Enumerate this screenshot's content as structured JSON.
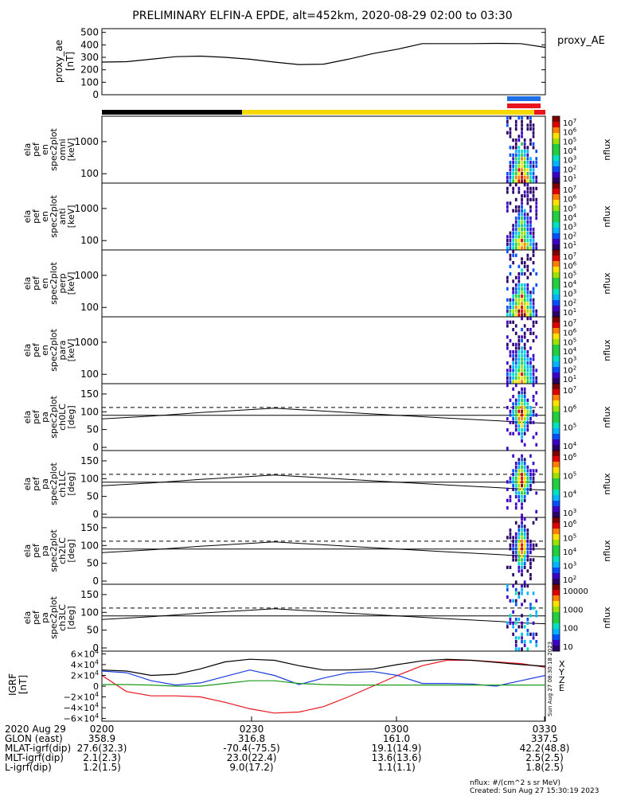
{
  "title": "PRELIMINARY ELFIN-A EPDE, alt=452km, 2020-08-29 02:00 to 03:30",
  "colors": {
    "black_bar": "#000000",
    "yellow_bar": "#f5d800",
    "blue_bar": "#1e6fe6",
    "red_bar": "#e8141e",
    "bx": "#e8141e",
    "by": "#1a3cdc",
    "bz": "#000000",
    "bg": "#1a9a1a"
  },
  "chart_data": [
    {
      "type": "line",
      "id": "proxy_ae",
      "ylabel_lines": [
        "proxy_ae",
        "[nT]"
      ],
      "yticks": [
        "500",
        "400",
        "300",
        "200",
        "100",
        "0"
      ],
      "ylim": [
        0,
        530
      ],
      "legend": "proxy_AE",
      "xlim_min": [
        0,
        90
      ],
      "x": [
        0,
        5,
        10,
        15,
        20,
        25,
        30,
        35,
        40,
        45,
        50,
        55,
        60,
        65,
        70,
        75,
        80,
        85,
        90
      ],
      "y": [
        262,
        265,
        285,
        305,
        310,
        300,
        285,
        262,
        242,
        245,
        285,
        330,
        365,
        410,
        410,
        410,
        412,
        410,
        380
      ]
    },
    {
      "type": "heatmap",
      "id": "omni",
      "ylabel_lines": [
        "ela",
        "pef",
        "en",
        "spec2plot",
        "omni",
        "[keV]"
      ],
      "yticks": [
        "1000",
        "100"
      ],
      "cbar_ticks": [
        "10^7",
        "10^6",
        "10^5",
        "10^4",
        "10^3",
        "10^2",
        "10^1"
      ],
      "cbar_label": "nflux"
    },
    {
      "type": "heatmap",
      "id": "anti",
      "ylabel_lines": [
        "ela",
        "pef",
        "en",
        "spec2plot",
        "anti",
        "[keV]"
      ],
      "yticks": [
        "1000",
        "100"
      ],
      "cbar_ticks": [
        "10^7",
        "10^6",
        "10^5",
        "10^4",
        "10^3",
        "10^2",
        "10^1"
      ],
      "cbar_label": "nflux"
    },
    {
      "type": "heatmap",
      "id": "perp",
      "ylabel_lines": [
        "ela",
        "pef",
        "en",
        "spec2plot",
        "perp",
        "[keV]"
      ],
      "yticks": [
        "1000",
        "100"
      ],
      "cbar_ticks": [
        "10^7",
        "10^6",
        "10^5",
        "10^4",
        "10^3",
        "10^2",
        "10^1"
      ],
      "cbar_label": "nflux"
    },
    {
      "type": "heatmap",
      "id": "para",
      "ylabel_lines": [
        "ela",
        "pef",
        "en",
        "spec2plot",
        "para",
        "[keV]"
      ],
      "yticks": [
        "1000",
        "100"
      ],
      "cbar_ticks": [
        "10^7",
        "10^6",
        "10^5",
        "10^4",
        "10^3",
        "10^2",
        "10^1"
      ],
      "cbar_label": "nflux"
    },
    {
      "type": "heatmap",
      "id": "ch0LC",
      "ylabel_lines": [
        "ela",
        "pef",
        "pa",
        "spec2plot",
        "ch0LC",
        "[deg]"
      ],
      "yticks": [
        "150",
        "100",
        "50",
        "0"
      ],
      "cbar_ticks": [
        "10^7",
        "10^6",
        "10^5",
        "10^4"
      ],
      "cbar_label": "nflux"
    },
    {
      "type": "heatmap",
      "id": "ch1LC",
      "ylabel_lines": [
        "ela",
        "pef",
        "pa",
        "spec2plot",
        "ch1LC",
        "[deg]"
      ],
      "yticks": [
        "150",
        "100",
        "50",
        "0"
      ],
      "cbar_ticks": [
        "10^6",
        "10^5",
        "10^4",
        "10^3"
      ],
      "cbar_label": "nflux"
    },
    {
      "type": "heatmap",
      "id": "ch2LC",
      "ylabel_lines": [
        "ela",
        "pef",
        "pa",
        "spec2plot",
        "ch2LC",
        "[deg]"
      ],
      "yticks": [
        "150",
        "100",
        "50",
        "0"
      ],
      "cbar_ticks": [
        "10^6",
        "10^5",
        "10^4",
        "10^3",
        "10^2"
      ],
      "cbar_label": "nflux"
    },
    {
      "type": "heatmap",
      "id": "ch3LC",
      "ylabel_lines": [
        "ela",
        "pef",
        "pa",
        "spec2plot",
        "ch3LC",
        "[deg]"
      ],
      "yticks": [
        "150",
        "100",
        "50",
        "0"
      ],
      "cbar_ticks": [
        "10000",
        "1000",
        "100",
        "10"
      ],
      "cbar_label": "nflux"
    },
    {
      "type": "line",
      "id": "igrf",
      "ylabel_lines": [
        "IGRF",
        "[nT]"
      ],
      "yticks": [
        "6×10^4",
        "4×10^4",
        "2×10^4",
        "0",
        "−2×10^4",
        "−4×10^4",
        "−6×10^4"
      ],
      "ylim": [
        -65000,
        65000
      ],
      "legend": [
        "X",
        "Y",
        "Z",
        "E"
      ],
      "series": [
        {
          "name": "X",
          "x": [
            0,
            5,
            10,
            15,
            20,
            25,
            30,
            35,
            40,
            45,
            50,
            55,
            60,
            65,
            70,
            75,
            80,
            85,
            90
          ],
          "values": [
            20000,
            -10000,
            -18000,
            -18000,
            -20000,
            -30000,
            -42000,
            -50000,
            -48000,
            -38000,
            -20000,
            0,
            20000,
            38000,
            48000,
            48000,
            45000,
            42000,
            35000
          ]
        },
        {
          "name": "Y",
          "x": [
            0,
            5,
            10,
            15,
            20,
            25,
            30,
            35,
            40,
            45,
            50,
            55,
            60,
            65,
            70,
            75,
            80,
            85,
            90
          ],
          "values": [
            28000,
            25000,
            10000,
            2000,
            6000,
            18000,
            30000,
            20000,
            3000,
            15000,
            25000,
            27000,
            20000,
            5000,
            5000,
            4000,
            0,
            10000,
            20000
          ]
        },
        {
          "name": "Z",
          "x": [
            0,
            5,
            10,
            15,
            20,
            25,
            30,
            35,
            40,
            45,
            50,
            55,
            60,
            65,
            70,
            75,
            80,
            85,
            90
          ],
          "values": [
            30000,
            28000,
            20000,
            22000,
            32000,
            45000,
            50000,
            48000,
            38000,
            30000,
            30000,
            32000,
            40000,
            47000,
            50000,
            48000,
            44000,
            40000,
            37000
          ]
        },
        {
          "name": "E",
          "x": [
            0,
            5,
            10,
            15,
            20,
            25,
            30,
            35,
            40,
            45,
            50,
            55,
            60,
            65,
            70,
            75,
            80,
            85,
            90
          ],
          "values": [
            3000,
            3000,
            2000,
            0,
            0,
            5000,
            10000,
            10000,
            5000,
            3000,
            2000,
            2000,
            2000,
            2000,
            2000,
            2000,
            2000,
            2000,
            2000
          ]
        }
      ],
      "side_text": "Sun Aug 27 08:30:18 2023"
    }
  ],
  "footer": {
    "rows": [
      {
        "label": "2020 Aug 29",
        "values": [
          "0200",
          "0230",
          "0300",
          "0330"
        ]
      },
      {
        "label": "GLON (east)",
        "values": [
          "358.9",
          "316.8",
          "161.0",
          "337.5"
        ]
      },
      {
        "label": "MLAT-igrf(dip)",
        "values": [
          "27.6(32.3)",
          "-70.4(-75.5)",
          "19.1(14.9)",
          "42.2(48.8)"
        ]
      },
      {
        "label": "MLT-igrf(dip)",
        "values": [
          "2.1(2.3)",
          "23.0(22.4)",
          "13.6(13.6)",
          "2.5(2.5)"
        ]
      },
      {
        "label": "L-igrf(dip)",
        "values": [
          "1.2(1.5)",
          "9.0(17.2)",
          "1.1(1.1)",
          "1.8(2.5)"
        ]
      }
    ],
    "units_note": "nflux: #/(cm^2 s sr MeV)",
    "created": "Created: Sun Aug 27 15:30:19 2023"
  }
}
